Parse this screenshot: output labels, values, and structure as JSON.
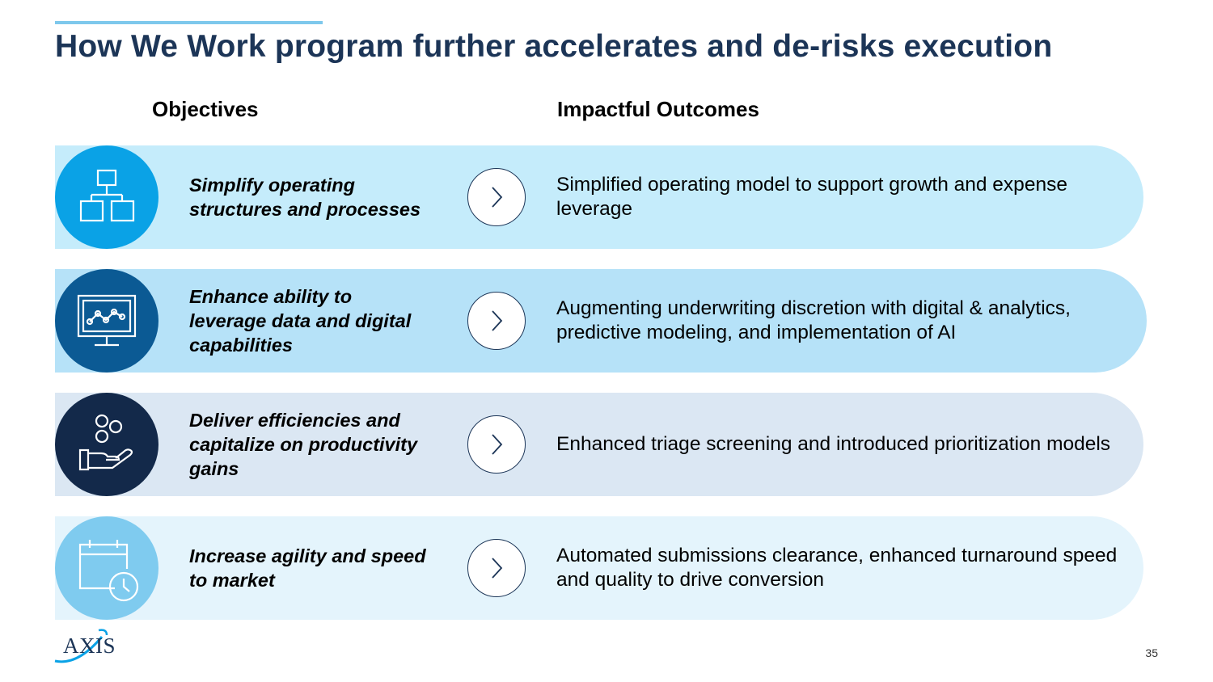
{
  "slide": {
    "title": "How We Work program further accelerates and de-risks execution",
    "objectives_header": "Objectives",
    "outcomes_header": "Impactful Outcomes",
    "rows": [
      {
        "icon": "org-chart-icon",
        "objective": "Simplify operating structures and processes",
        "outcome": "Simplified operating model to support growth and expense leverage",
        "circle_color": "#0aa2e6",
        "band_color": "#c5ecfb"
      },
      {
        "icon": "monitor-chart-icon",
        "objective": "Enhance ability to leverage data and digital capabilities",
        "outcome": "Augmenting underwriting discretion with digital & analytics, predictive modeling, and implementation of AI",
        "circle_color": "#0b5a94",
        "band_color": "#b6e2f8"
      },
      {
        "icon": "hand-coins-icon",
        "objective": "Deliver efficiencies and capitalize on productivity gains",
        "outcome": "Enhanced triage screening and introduced prioritization models",
        "circle_color": "#13294a",
        "band_color": "#dbe7f3"
      },
      {
        "icon": "calendar-clock-icon",
        "objective": "Increase agility and speed to market",
        "outcome": "Automated submissions clearance, enhanced turnaround speed and quality to drive conversion",
        "circle_color": "#7fcbef",
        "band_color": "#e4f4fc"
      }
    ],
    "logo_text": "AXIS",
    "page_number": "35",
    "accent_color": "#7ec8ec",
    "title_color": "#1c3557"
  }
}
